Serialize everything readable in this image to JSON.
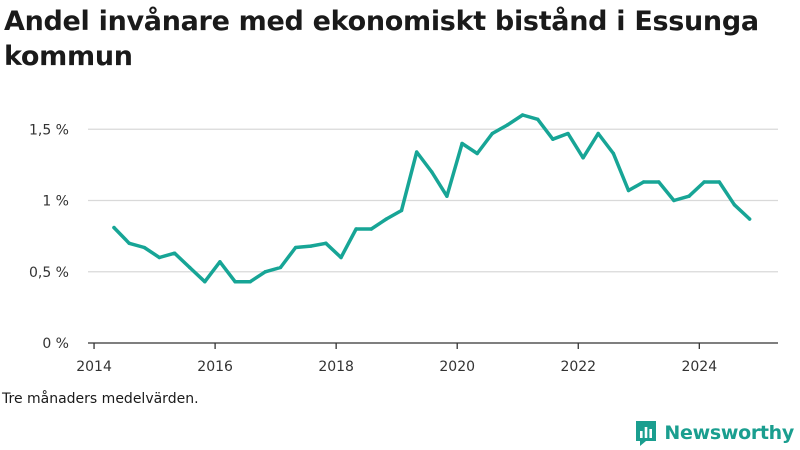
{
  "title": "Andel invånare med ekonomiskt bistånd i Essunga kommun",
  "note": "Tre månaders medelvärden.",
  "brand": {
    "name": "Newsworthy",
    "icon": "newsworthy-logo-icon",
    "color": "#1a9e8f"
  },
  "colors": {
    "line": "#17a596",
    "grid": "#d9d9d9",
    "axis": "#333333"
  },
  "chart_data": {
    "type": "line",
    "title": "Andel invånare med ekonomiskt bistånd i Essunga kommun",
    "xlabel": "",
    "ylabel": "",
    "xlim": [
      2013.9,
      2025.3
    ],
    "ylim": [
      0,
      1.6
    ],
    "x_ticks": [
      2014,
      2016,
      2018,
      2020,
      2022,
      2024
    ],
    "x_tick_labels": [
      "2014",
      "2016",
      "2018",
      "2020",
      "2022",
      "2024"
    ],
    "y_ticks": [
      0,
      0.5,
      1,
      1.5
    ],
    "y_tick_labels": [
      "0 %",
      "0,5 %",
      "1 %",
      "1,5 %"
    ],
    "grid": true,
    "legend": "none",
    "series": [
      {
        "x": [
          2014.33,
          2014.58,
          2014.83,
          2015.08,
          2015.33,
          2015.58,
          2015.83,
          2016.08,
          2016.33,
          2016.58,
          2016.83,
          2017.08,
          2017.33,
          2017.58,
          2017.83,
          2018.08,
          2018.33,
          2018.58,
          2018.83,
          2019.08,
          2019.33,
          2019.58,
          2019.83,
          2020.08,
          2020.33,
          2020.58,
          2020.83,
          2021.08,
          2021.33,
          2021.58,
          2021.83,
          2022.08,
          2022.33,
          2022.58,
          2022.83,
          2023.08,
          2023.33,
          2023.58,
          2023.83,
          2024.08,
          2024.33,
          2024.58,
          2024.83
        ],
        "values": [
          0.81,
          0.7,
          0.67,
          0.6,
          0.63,
          0.53,
          0.43,
          0.57,
          0.43,
          0.43,
          0.5,
          0.53,
          0.67,
          0.68,
          0.7,
          0.6,
          0.8,
          0.8,
          0.87,
          0.93,
          1.34,
          1.2,
          1.03,
          1.4,
          1.33,
          1.47,
          1.53,
          1.6,
          1.57,
          1.43,
          1.47,
          1.3,
          1.47,
          1.33,
          1.07,
          1.13,
          1.13,
          1.0,
          1.03,
          1.13,
          1.13,
          0.97,
          0.87
        ]
      }
    ]
  }
}
